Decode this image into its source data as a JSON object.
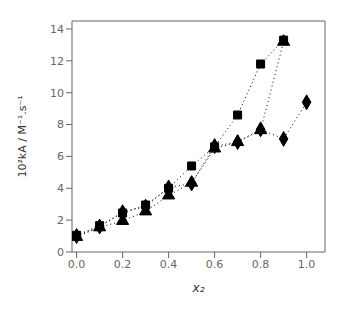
{
  "chart_data": {
    "type": "line",
    "xlabel": "x₂",
    "ylabel": "10²kA / M⁻¹.s⁻¹",
    "series": [
      {
        "color": "black",
        "marker": "square",
        "line_style": "dotted",
        "x": [
          0.0,
          0.1,
          0.2,
          0.3,
          0.4,
          0.5,
          0.6,
          0.7,
          0.8,
          0.9
        ],
        "values": [
          1.05,
          1.65,
          2.45,
          2.95,
          4.0,
          5.4,
          6.6,
          8.6,
          11.8,
          13.3
        ]
      },
      {
        "color": "black",
        "marker": "triangle",
        "line_style": "dotted",
        "x": [
          0.0,
          0.1,
          0.2,
          0.3,
          0.4,
          0.5,
          0.6,
          0.7,
          0.8,
          0.9
        ],
        "values": [
          0.95,
          1.55,
          1.95,
          2.55,
          3.55,
          4.35,
          6.5,
          6.9,
          7.65,
          13.2
        ]
      },
      {
        "color": "black",
        "marker": "diamond",
        "line_style": "dotted",
        "x": [
          0.0,
          0.1,
          0.2,
          0.3,
          0.4,
          0.5,
          0.6,
          0.7,
          0.8,
          0.9,
          1.0
        ],
        "values": [
          1.0,
          1.6,
          2.5,
          2.85,
          4.05,
          4.3,
          6.65,
          6.9,
          7.7,
          7.1,
          9.4
        ]
      }
    ],
    "xlim": [
      -0.02,
      1.08
    ],
    "ylim": [
      0,
      14.5
    ],
    "xticks": [
      {
        "value": 0.0,
        "label": "0.0"
      },
      0.2,
      0.4,
      0.6,
      0.8,
      {
        "value": 1.0,
        "label": "1.0"
      }
    ],
    "yticks": [
      0,
      2,
      4,
      6,
      8,
      10,
      12,
      14
    ],
    "grid": false
  }
}
